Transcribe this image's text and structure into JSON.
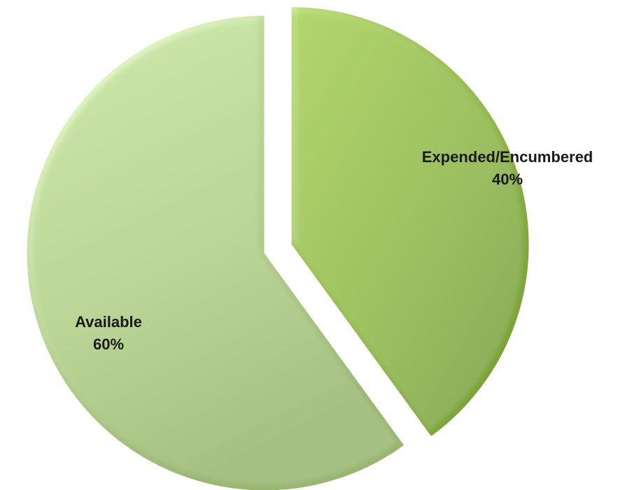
{
  "chart_data": {
    "type": "pie",
    "title": "",
    "slices": [
      {
        "label": "Expended/Encumbered",
        "percent_label": "40%",
        "value": 40,
        "color": "#8fb548",
        "exploded": true
      },
      {
        "label": "Available",
        "percent_label": "60%",
        "value": 60,
        "color": "#aed08a",
        "exploded": false
      }
    ],
    "start_angle_deg": 0,
    "direction": "clockwise",
    "legend": "none"
  }
}
